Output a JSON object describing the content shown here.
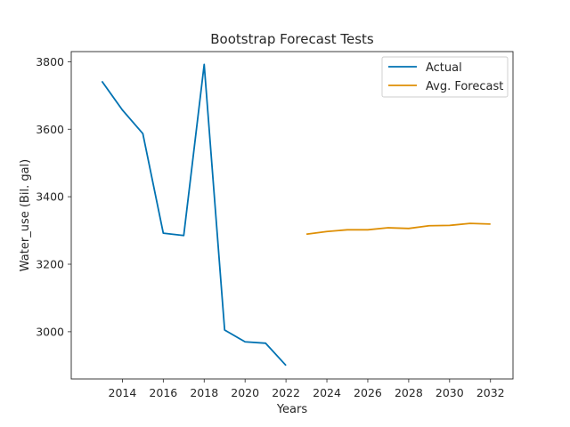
{
  "chart_data": {
    "type": "line",
    "title": "Bootstrap Forecast Tests",
    "xlabel": "Years",
    "ylabel": "Water_use (Bil. gal)",
    "xlim": [
      2011.5,
      2033.1
    ],
    "ylim": [
      2860,
      3830
    ],
    "xticks": [
      2014,
      2016,
      2018,
      2020,
      2022,
      2024,
      2026,
      2028,
      2030,
      2032
    ],
    "yticks": [
      3000,
      3200,
      3400,
      3600,
      3800
    ],
    "grid": false,
    "legend_position": "top-right",
    "series": [
      {
        "name": "Actual",
        "color": "#0072b2",
        "x": [
          2013,
          2014,
          2015,
          2016,
          2017,
          2018,
          2019,
          2020,
          2021,
          2022
        ],
        "y": [
          3742,
          3657,
          3587,
          3292,
          3285,
          3792,
          3005,
          2970,
          2966,
          2900
        ]
      },
      {
        "name": "Avg. Forecast",
        "color": "#de8f05",
        "x": [
          2023,
          2024,
          2025,
          2026,
          2027,
          2028,
          2029,
          2030,
          2031,
          2032
        ],
        "y": [
          3289,
          3297,
          3302,
          3302,
          3308,
          3306,
          3314,
          3315,
          3321,
          3319
        ]
      }
    ]
  }
}
